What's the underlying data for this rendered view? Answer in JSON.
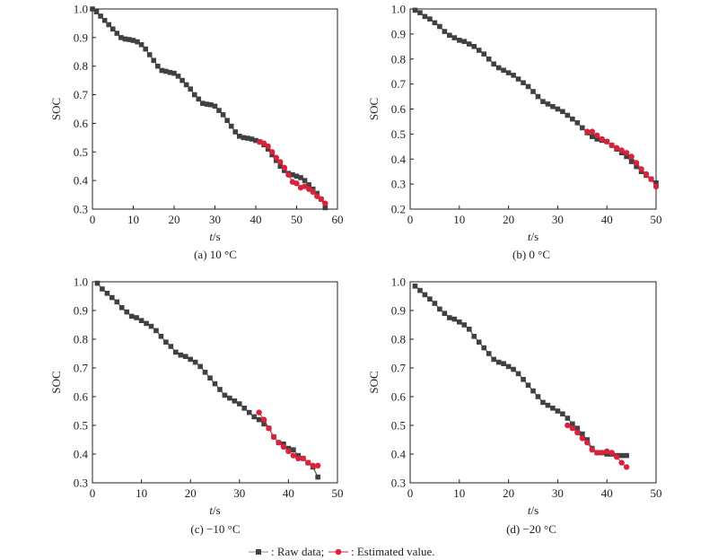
{
  "legend": {
    "raw_label": ": Raw data;",
    "est_label": ": Estimated value."
  },
  "colors": {
    "raw": "#404040",
    "estimated": "#d9233a",
    "axis": "#222222"
  },
  "chart_data": [
    {
      "type": "scatter",
      "caption": "(a) 10 °C",
      "xlabel_italic": "t",
      "xlabel_rest": "/s",
      "ylabel": "SOC",
      "xlim": [
        0,
        60
      ],
      "ylim": [
        0.3,
        1.0
      ],
      "xticks": [
        0,
        10,
        20,
        30,
        40,
        50,
        60
      ],
      "xtick_labels": [
        "0",
        "10",
        "20",
        "30",
        "40",
        "50",
        "60"
      ],
      "yticks": [
        0.3,
        0.4,
        0.5,
        0.6,
        0.7,
        0.8,
        0.9,
        1.0
      ],
      "ytick_labels": [
        "0.3",
        "0.4",
        "0.5",
        "0.6",
        "0.7",
        "0.8",
        "0.9",
        "1.0"
      ],
      "series": [
        {
          "name": "Raw data",
          "marker": "square",
          "x": [
            0,
            1,
            2,
            3,
            4,
            5,
            6,
            7,
            8,
            9,
            10,
            11,
            12,
            13,
            14,
            15,
            16,
            17,
            18,
            19,
            20,
            21,
            22,
            23,
            24,
            25,
            26,
            27,
            28,
            29,
            30,
            31,
            32,
            33,
            34,
            35,
            36,
            37,
            38,
            39,
            40,
            41,
            42,
            43,
            44,
            45,
            46,
            47,
            48,
            49,
            50,
            51,
            52,
            53,
            54,
            55,
            56,
            57
          ],
          "y": [
            1.0,
            0.99,
            0.975,
            0.96,
            0.945,
            0.93,
            0.915,
            0.9,
            0.895,
            0.893,
            0.89,
            0.885,
            0.875,
            0.86,
            0.84,
            0.82,
            0.8,
            0.785,
            0.782,
            0.778,
            0.775,
            0.765,
            0.75,
            0.735,
            0.72,
            0.7,
            0.685,
            0.67,
            0.667,
            0.665,
            0.66,
            0.645,
            0.63,
            0.61,
            0.59,
            0.57,
            0.555,
            0.55,
            0.548,
            0.545,
            0.54,
            0.535,
            0.525,
            0.51,
            0.49,
            0.47,
            0.45,
            0.435,
            0.425,
            0.42,
            0.415,
            0.41,
            0.4,
            0.385,
            0.37,
            0.355,
            0.335,
            0.305
          ]
        },
        {
          "name": "Estimated value",
          "marker": "circle",
          "x": [
            41,
            42,
            43,
            44,
            45,
            46,
            47,
            48,
            49,
            50,
            51,
            52,
            53,
            54,
            55,
            56,
            57
          ],
          "y": [
            0.535,
            0.53,
            0.52,
            0.5,
            0.48,
            0.465,
            0.445,
            0.42,
            0.395,
            0.39,
            0.375,
            0.38,
            0.37,
            0.36,
            0.345,
            0.335,
            0.32
          ]
        }
      ]
    },
    {
      "type": "scatter",
      "caption": "(b) 0 °C",
      "xlabel_italic": "t",
      "xlabel_rest": "/s",
      "ylabel": "SOC",
      "xlim": [
        0,
        50
      ],
      "ylim": [
        0.2,
        1.0
      ],
      "xticks": [
        0,
        10,
        20,
        30,
        40,
        50
      ],
      "xtick_labels": [
        "0",
        "10",
        "20",
        "30",
        "40",
        "50"
      ],
      "yticks": [
        0.2,
        0.3,
        0.4,
        0.5,
        0.6,
        0.7,
        0.8,
        0.9,
        1.0
      ],
      "ytick_labels": [
        "0.2",
        "0.3",
        "0.4",
        "0.5",
        "0.6",
        "0.7",
        "0.8",
        "0.9",
        "1.0"
      ],
      "series": [
        {
          "name": "Raw data",
          "marker": "square",
          "x": [
            1,
            2,
            3,
            4,
            5,
            6,
            7,
            8,
            9,
            10,
            11,
            12,
            13,
            14,
            15,
            16,
            17,
            18,
            19,
            20,
            21,
            22,
            23,
            24,
            25,
            26,
            27,
            28,
            29,
            30,
            31,
            32,
            33,
            34,
            35,
            36,
            37,
            38,
            39,
            40,
            41,
            42,
            43,
            44,
            45,
            46,
            47,
            48,
            49,
            50
          ],
          "y": [
            0.995,
            0.985,
            0.97,
            0.96,
            0.945,
            0.93,
            0.91,
            0.895,
            0.885,
            0.875,
            0.87,
            0.86,
            0.85,
            0.835,
            0.82,
            0.8,
            0.78,
            0.765,
            0.755,
            0.745,
            0.735,
            0.72,
            0.705,
            0.69,
            0.67,
            0.65,
            0.63,
            0.62,
            0.61,
            0.6,
            0.59,
            0.575,
            0.56,
            0.545,
            0.525,
            0.505,
            0.49,
            0.48,
            0.475,
            0.47,
            0.455,
            0.44,
            0.425,
            0.41,
            0.39,
            0.37,
            0.35,
            0.335,
            0.32,
            0.305
          ]
        },
        {
          "name": "Estimated value",
          "marker": "circle",
          "x": [
            36,
            37,
            38,
            39,
            40,
            41,
            42,
            43,
            44,
            45,
            46,
            47,
            48,
            49,
            50
          ],
          "y": [
            0.51,
            0.51,
            0.495,
            0.48,
            0.47,
            0.455,
            0.445,
            0.435,
            0.425,
            0.41,
            0.385,
            0.36,
            0.34,
            0.32,
            0.29
          ]
        }
      ]
    },
    {
      "type": "scatter",
      "caption": "(c) −10 °C",
      "xlabel_italic": "t",
      "xlabel_rest": "/s",
      "ylabel": "SOC",
      "xlim": [
        0,
        50
      ],
      "ylim": [
        0.3,
        1.0
      ],
      "xticks": [
        0,
        10,
        20,
        30,
        40,
        50
      ],
      "xtick_labels": [
        "0",
        "10",
        "20",
        "30",
        "40",
        "50"
      ],
      "yticks": [
        0.3,
        0.4,
        0.5,
        0.6,
        0.7,
        0.8,
        0.9,
        1.0
      ],
      "ytick_labels": [
        "0.3",
        "0.4",
        "0.5",
        "0.6",
        "0.7",
        "0.8",
        "0.9",
        "1.0"
      ],
      "series": [
        {
          "name": "Raw data",
          "marker": "square",
          "x": [
            1,
            2,
            3,
            4,
            5,
            6,
            7,
            8,
            9,
            10,
            11,
            12,
            13,
            14,
            15,
            16,
            17,
            18,
            19,
            20,
            21,
            22,
            23,
            24,
            25,
            26,
            27,
            28,
            29,
            30,
            31,
            32,
            33,
            34,
            35,
            36,
            37,
            38,
            39,
            40,
            41,
            42,
            43,
            44,
            45,
            46
          ],
          "y": [
            0.995,
            0.975,
            0.96,
            0.945,
            0.93,
            0.91,
            0.895,
            0.88,
            0.875,
            0.865,
            0.855,
            0.845,
            0.83,
            0.81,
            0.79,
            0.775,
            0.755,
            0.745,
            0.74,
            0.73,
            0.72,
            0.705,
            0.685,
            0.665,
            0.645,
            0.625,
            0.605,
            0.595,
            0.585,
            0.575,
            0.56,
            0.545,
            0.53,
            0.52,
            0.505,
            0.49,
            0.46,
            0.44,
            0.435,
            0.42,
            0.415,
            0.395,
            0.385,
            0.37,
            0.355,
            0.32
          ]
        },
        {
          "name": "Estimated value",
          "marker": "circle",
          "x": [
            34,
            35,
            36,
            37,
            38,
            39,
            40,
            41,
            42,
            43,
            44,
            45,
            46
          ],
          "y": [
            0.545,
            0.52,
            0.49,
            0.46,
            0.44,
            0.425,
            0.41,
            0.395,
            0.385,
            0.385,
            0.37,
            0.36,
            0.36
          ]
        }
      ]
    },
    {
      "type": "scatter",
      "caption": "(d) −20 °C",
      "xlabel_italic": "t",
      "xlabel_rest": "/s",
      "ylabel": "SOC",
      "xlim": [
        0,
        50
      ],
      "ylim": [
        0.3,
        1.0
      ],
      "xticks": [
        0,
        10,
        20,
        30,
        40,
        50
      ],
      "xtick_labels": [
        "0",
        "10",
        "20",
        "30",
        "40",
        "50"
      ],
      "yticks": [
        0.3,
        0.4,
        0.5,
        0.6,
        0.7,
        0.8,
        0.9,
        1.0
      ],
      "ytick_labels": [
        "0.3",
        "0.4",
        "0.5",
        "0.6",
        "0.7",
        "0.8",
        "0.9",
        "1.0"
      ],
      "series": [
        {
          "name": "Raw data",
          "marker": "square",
          "x": [
            1,
            2,
            3,
            4,
            5,
            6,
            7,
            8,
            9,
            10,
            11,
            12,
            13,
            14,
            15,
            16,
            17,
            18,
            19,
            20,
            21,
            22,
            23,
            24,
            25,
            26,
            27,
            28,
            29,
            30,
            31,
            32,
            33,
            34,
            35,
            36,
            37,
            38,
            39,
            40,
            41,
            42,
            43,
            44
          ],
          "y": [
            0.985,
            0.97,
            0.955,
            0.94,
            0.925,
            0.905,
            0.89,
            0.875,
            0.87,
            0.86,
            0.85,
            0.835,
            0.81,
            0.79,
            0.77,
            0.75,
            0.73,
            0.72,
            0.715,
            0.705,
            0.695,
            0.68,
            0.66,
            0.64,
            0.62,
            0.6,
            0.58,
            0.57,
            0.56,
            0.55,
            0.54,
            0.525,
            0.505,
            0.49,
            0.47,
            0.45,
            0.42,
            0.405,
            0.405,
            0.4,
            0.4,
            0.395,
            0.395,
            0.395
          ]
        },
        {
          "name": "Estimated value",
          "marker": "circle",
          "x": [
            32,
            33,
            34,
            35,
            36,
            37,
            38,
            39,
            40,
            41,
            42,
            43,
            44
          ],
          "y": [
            0.5,
            0.49,
            0.475,
            0.455,
            0.44,
            0.415,
            0.405,
            0.405,
            0.41,
            0.405,
            0.39,
            0.37,
            0.355
          ]
        }
      ]
    }
  ]
}
